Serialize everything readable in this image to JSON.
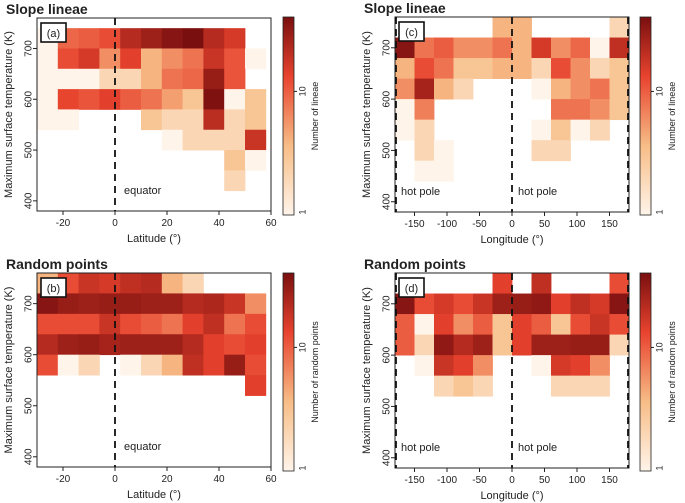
{
  "figure": {
    "panels": [
      {
        "id": "a",
        "title": "Slope lineae",
        "label": "(a)",
        "xaxis": "lat",
        "cbar_label": "Number of lineae",
        "cbar_tick": "10",
        "cbar_tick_min": "1",
        "marker": "equator",
        "marker2": ""
      },
      {
        "id": "c",
        "title": "Slope lineae",
        "label": "(c)",
        "xaxis": "lon",
        "cbar_label": "Number of lineae",
        "cbar_tick": "10",
        "cbar_tick_min": "1",
        "marker": "hot pole",
        "marker2": "hot pole"
      },
      {
        "id": "b",
        "title": "Random points",
        "label": "(b)",
        "xaxis": "lat",
        "cbar_label": "Number of random points",
        "cbar_tick": "10",
        "cbar_tick_min": "1",
        "marker": "equator",
        "marker2": ""
      },
      {
        "id": "d",
        "title": "Random points",
        "label": "(d)",
        "xaxis": "lon",
        "cbar_label": "Number of random points",
        "cbar_tick": "10",
        "cbar_tick_min": "1",
        "marker": "hot pole",
        "marker2": "hot pole"
      }
    ],
    "colors": {
      "low": "#fff4ea",
      "mid": "#f7bd86",
      "high": "#e8432e",
      "max": "#7a0f0f"
    }
  },
  "chart_data": [
    {
      "type": "heatmap",
      "id": "a",
      "title": "Slope lineae",
      "xlabel": "Latitude (°)",
      "ylabel": "Maximum surface temperature (K)",
      "xlim": [
        -30,
        60
      ],
      "ylim": [
        380,
        760
      ],
      "xticks": [
        "-20",
        "0",
        "20",
        "40",
        "60"
      ],
      "xtick_values": [
        -20,
        0,
        20,
        40,
        60
      ],
      "yticks": [
        "400",
        "500",
        "600",
        "700"
      ],
      "ytick_values": [
        400,
        500,
        600,
        700
      ],
      "x_bin_start": -30,
      "x_bin_width": 8,
      "y_bin_start": 380,
      "y_bin_width": 40,
      "colorbar": {
        "label": "Number of lineae",
        "scale": "log",
        "range": [
          1,
          40
        ],
        "ticks": [
          "1",
          "10"
        ]
      },
      "cells": [
        [
          -30,
          700,
          1
        ],
        [
          -22,
          700,
          9
        ],
        [
          -14,
          700,
          10
        ],
        [
          -6,
          700,
          12
        ],
        [
          2,
          700,
          22
        ],
        [
          10,
          700,
          28
        ],
        [
          18,
          700,
          35
        ],
        [
          26,
          700,
          40
        ],
        [
          34,
          700,
          22
        ],
        [
          42,
          700,
          16
        ],
        [
          -30,
          660,
          1
        ],
        [
          -22,
          660,
          12
        ],
        [
          -14,
          660,
          16
        ],
        [
          -6,
          660,
          6
        ],
        [
          2,
          660,
          14
        ],
        [
          10,
          660,
          4
        ],
        [
          18,
          660,
          6
        ],
        [
          26,
          660,
          8
        ],
        [
          34,
          660,
          18
        ],
        [
          42,
          660,
          11
        ],
        [
          50,
          660,
          1
        ],
        [
          -30,
          620,
          1
        ],
        [
          -22,
          620,
          1
        ],
        [
          -14,
          620,
          1
        ],
        [
          -6,
          620,
          2
        ],
        [
          2,
          620,
          2
        ],
        [
          10,
          620,
          4
        ],
        [
          18,
          620,
          8
        ],
        [
          26,
          620,
          9
        ],
        [
          34,
          620,
          30
        ],
        [
          42,
          620,
          11
        ],
        [
          -30,
          580,
          1
        ],
        [
          -22,
          580,
          13
        ],
        [
          -14,
          580,
          11
        ],
        [
          -6,
          580,
          14
        ],
        [
          2,
          580,
          10
        ],
        [
          10,
          580,
          8
        ],
        [
          18,
          580,
          5
        ],
        [
          26,
          580,
          3
        ],
        [
          34,
          580,
          38
        ],
        [
          42,
          580,
          1
        ],
        [
          50,
          580,
          3
        ],
        [
          -30,
          540,
          1
        ],
        [
          -22,
          540,
          1
        ],
        [
          10,
          540,
          3
        ],
        [
          18,
          540,
          2
        ],
        [
          26,
          540,
          2
        ],
        [
          34,
          540,
          21
        ],
        [
          42,
          540,
          2
        ],
        [
          50,
          540,
          3
        ],
        [
          18,
          500,
          1
        ],
        [
          26,
          500,
          2
        ],
        [
          34,
          500,
          2
        ],
        [
          42,
          500,
          2
        ],
        [
          50,
          500,
          18
        ],
        [
          42,
          460,
          3
        ],
        [
          50,
          460,
          1
        ],
        [
          42,
          420,
          2
        ]
      ]
    },
    {
      "type": "heatmap",
      "id": "c",
      "title": "Slope lineae",
      "xlabel": "Longitude (°)",
      "ylabel": "Maximum surface temperature (K)",
      "xlim": [
        -180,
        180
      ],
      "ylim": [
        380,
        760
      ],
      "xticks": [
        "-150",
        "-100",
        "-50",
        "0",
        "50",
        "100",
        "150"
      ],
      "xtick_values": [
        -150,
        -100,
        -50,
        0,
        50,
        100,
        150
      ],
      "yticks": [
        "400",
        "500",
        "600",
        "700"
      ],
      "ytick_values": [
        400,
        500,
        600,
        700
      ],
      "x_bin_start": -180,
      "x_bin_width": 30,
      "y_bin_start": 380,
      "y_bin_width": 40,
      "colorbar": {
        "label": "Number of lineae",
        "scale": "log",
        "range": [
          1,
          40
        ],
        "ticks": [
          "1",
          "10"
        ]
      },
      "cells": [
        [
          -30,
          720,
          4
        ],
        [
          0,
          720,
          4
        ],
        [
          150,
          720,
          2
        ],
        [
          -180,
          680,
          35
        ],
        [
          -150,
          680,
          8
        ],
        [
          -120,
          680,
          10
        ],
        [
          -90,
          680,
          6
        ],
        [
          -60,
          680,
          6
        ],
        [
          -30,
          680,
          8
        ],
        [
          0,
          680,
          4
        ],
        [
          30,
          680,
          16
        ],
        [
          60,
          680,
          6
        ],
        [
          90,
          680,
          9
        ],
        [
          120,
          680,
          1
        ],
        [
          150,
          680,
          20
        ],
        [
          -180,
          640,
          4
        ],
        [
          -150,
          640,
          12
        ],
        [
          -120,
          640,
          8
        ],
        [
          -90,
          640,
          3
        ],
        [
          -60,
          640,
          3
        ],
        [
          -30,
          640,
          4
        ],
        [
          0,
          640,
          4
        ],
        [
          30,
          640,
          2
        ],
        [
          60,
          640,
          12
        ],
        [
          90,
          640,
          6
        ],
        [
          120,
          640,
          2
        ],
        [
          150,
          640,
          3
        ],
        [
          -180,
          600,
          6
        ],
        [
          -150,
          600,
          26
        ],
        [
          -120,
          600,
          4
        ],
        [
          -90,
          600,
          2
        ],
        [
          30,
          600,
          1
        ],
        [
          60,
          600,
          4
        ],
        [
          90,
          600,
          6
        ],
        [
          120,
          600,
          8
        ],
        [
          150,
          600,
          3
        ],
        [
          -180,
          560,
          1
        ],
        [
          -150,
          560,
          7
        ],
        [
          60,
          560,
          8
        ],
        [
          90,
          560,
          8
        ],
        [
          120,
          560,
          6
        ],
        [
          150,
          560,
          3
        ],
        [
          -180,
          520,
          1
        ],
        [
          -150,
          520,
          2
        ],
        [
          30,
          520,
          1
        ],
        [
          60,
          520,
          3
        ],
        [
          90,
          520,
          1
        ],
        [
          120,
          520,
          2
        ],
        [
          -150,
          480,
          2
        ],
        [
          -120,
          480,
          1
        ],
        [
          30,
          480,
          2
        ],
        [
          60,
          480,
          2
        ],
        [
          -150,
          440,
          1
        ],
        [
          -120,
          440,
          1
        ]
      ]
    },
    {
      "type": "heatmap",
      "id": "b",
      "title": "Random points",
      "xlabel": "Latitude (°)",
      "ylabel": "Maximum surface temperature (K)",
      "xlim": [
        -30,
        60
      ],
      "ylim": [
        380,
        760
      ],
      "xticks": [
        "-20",
        "0",
        "20",
        "40",
        "60"
      ],
      "xtick_values": [
        -20,
        0,
        20,
        40,
        60
      ],
      "yticks": [
        "400",
        "500",
        "600",
        "700"
      ],
      "ytick_values": [
        400,
        500,
        600,
        700
      ],
      "x_bin_start": -30,
      "x_bin_width": 8,
      "y_bin_start": 380,
      "y_bin_width": 40,
      "colorbar": {
        "label": "Number of random points",
        "scale": "log",
        "range": [
          1,
          40
        ],
        "ticks": [
          "1",
          "10"
        ]
      },
      "cells": [
        [
          -30,
          720,
          4
        ],
        [
          -22,
          720,
          12
        ],
        [
          -14,
          720,
          18
        ],
        [
          -6,
          720,
          16
        ],
        [
          2,
          720,
          20
        ],
        [
          10,
          720,
          22
        ],
        [
          18,
          720,
          4
        ],
        [
          26,
          720,
          2
        ],
        [
          -30,
          680,
          35
        ],
        [
          -22,
          680,
          30
        ],
        [
          -14,
          680,
          28
        ],
        [
          -6,
          680,
          30
        ],
        [
          2,
          680,
          30
        ],
        [
          10,
          680,
          28
        ],
        [
          18,
          680,
          28
        ],
        [
          26,
          680,
          22
        ],
        [
          34,
          680,
          24
        ],
        [
          42,
          680,
          18
        ],
        [
          50,
          680,
          6
        ],
        [
          -30,
          640,
          12
        ],
        [
          -22,
          640,
          12
        ],
        [
          -14,
          640,
          12
        ],
        [
          -6,
          640,
          18
        ],
        [
          2,
          640,
          12
        ],
        [
          10,
          640,
          10
        ],
        [
          18,
          640,
          8
        ],
        [
          26,
          640,
          14
        ],
        [
          34,
          640,
          20
        ],
        [
          42,
          640,
          8
        ],
        [
          50,
          640,
          12
        ],
        [
          -30,
          600,
          22
        ],
        [
          -22,
          600,
          28
        ],
        [
          -14,
          600,
          30
        ],
        [
          -6,
          600,
          26
        ],
        [
          2,
          600,
          28
        ],
        [
          10,
          600,
          28
        ],
        [
          18,
          600,
          28
        ],
        [
          26,
          600,
          22
        ],
        [
          34,
          600,
          14
        ],
        [
          42,
          600,
          12
        ],
        [
          50,
          600,
          14
        ],
        [
          -30,
          560,
          12
        ],
        [
          -22,
          560,
          1
        ],
        [
          -14,
          560,
          2
        ],
        [
          2,
          560,
          1
        ],
        [
          10,
          560,
          2
        ],
        [
          18,
          560,
          4
        ],
        [
          26,
          560,
          20
        ],
        [
          34,
          560,
          14
        ],
        [
          42,
          560,
          30
        ],
        [
          50,
          560,
          12
        ],
        [
          50,
          520,
          14
        ]
      ]
    },
    {
      "type": "heatmap",
      "id": "d",
      "title": "Random points",
      "xlabel": "Longitude (°)",
      "ylabel": "Maximum surface temperature (K)",
      "xlim": [
        -180,
        180
      ],
      "ylim": [
        380,
        760
      ],
      "xticks": [
        "-150",
        "-100",
        "-50",
        "0",
        "50",
        "100",
        "150"
      ],
      "xtick_values": [
        -150,
        -100,
        -50,
        0,
        50,
        100,
        150
      ],
      "yticks": [
        "400",
        "500",
        "600",
        "700"
      ],
      "ytick_values": [
        400,
        500,
        600,
        700
      ],
      "x_bin_start": -180,
      "x_bin_width": 30,
      "y_bin_start": 380,
      "y_bin_width": 40,
      "colorbar": {
        "label": "Number of random points",
        "scale": "log",
        "range": [
          1,
          40
        ],
        "ticks": [
          "1",
          "10"
        ]
      },
      "cells": [
        [
          -30,
          720,
          14
        ],
        [
          30,
          720,
          20
        ],
        [
          150,
          720,
          12
        ],
        [
          -180,
          680,
          35
        ],
        [
          -150,
          680,
          12
        ],
        [
          -120,
          680,
          16
        ],
        [
          -90,
          680,
          12
        ],
        [
          -60,
          680,
          18
        ],
        [
          -30,
          680,
          28
        ],
        [
          0,
          680,
          30
        ],
        [
          30,
          680,
          32
        ],
        [
          60,
          680,
          14
        ],
        [
          90,
          680,
          20
        ],
        [
          120,
          680,
          16
        ],
        [
          150,
          680,
          35
        ],
        [
          -180,
          640,
          10
        ],
        [
          -150,
          640,
          1
        ],
        [
          -120,
          640,
          14
        ],
        [
          -90,
          640,
          6
        ],
        [
          -60,
          640,
          10
        ],
        [
          -30,
          640,
          3
        ],
        [
          0,
          640,
          14
        ],
        [
          30,
          640,
          10
        ],
        [
          60,
          640,
          3
        ],
        [
          90,
          640,
          12
        ],
        [
          120,
          640,
          18
        ],
        [
          150,
          640,
          12
        ],
        [
          -180,
          600,
          10
        ],
        [
          -150,
          600,
          2
        ],
        [
          -120,
          600,
          32
        ],
        [
          -90,
          600,
          22
        ],
        [
          -60,
          600,
          28
        ],
        [
          -30,
          600,
          3
        ],
        [
          0,
          600,
          14
        ],
        [
          30,
          600,
          28
        ],
        [
          60,
          600,
          28
        ],
        [
          90,
          600,
          30
        ],
        [
          120,
          600,
          30
        ],
        [
          150,
          600,
          2
        ],
        [
          -150,
          560,
          1
        ],
        [
          -120,
          560,
          18
        ],
        [
          -90,
          560,
          14
        ],
        [
          -60,
          560,
          6
        ],
        [
          30,
          560,
          1
        ],
        [
          60,
          560,
          16
        ],
        [
          90,
          560,
          14
        ],
        [
          120,
          560,
          6
        ],
        [
          -120,
          520,
          2
        ],
        [
          -90,
          520,
          3
        ],
        [
          -60,
          520,
          2
        ],
        [
          60,
          520,
          2
        ],
        [
          90,
          520,
          2
        ],
        [
          120,
          520,
          2
        ]
      ]
    }
  ]
}
